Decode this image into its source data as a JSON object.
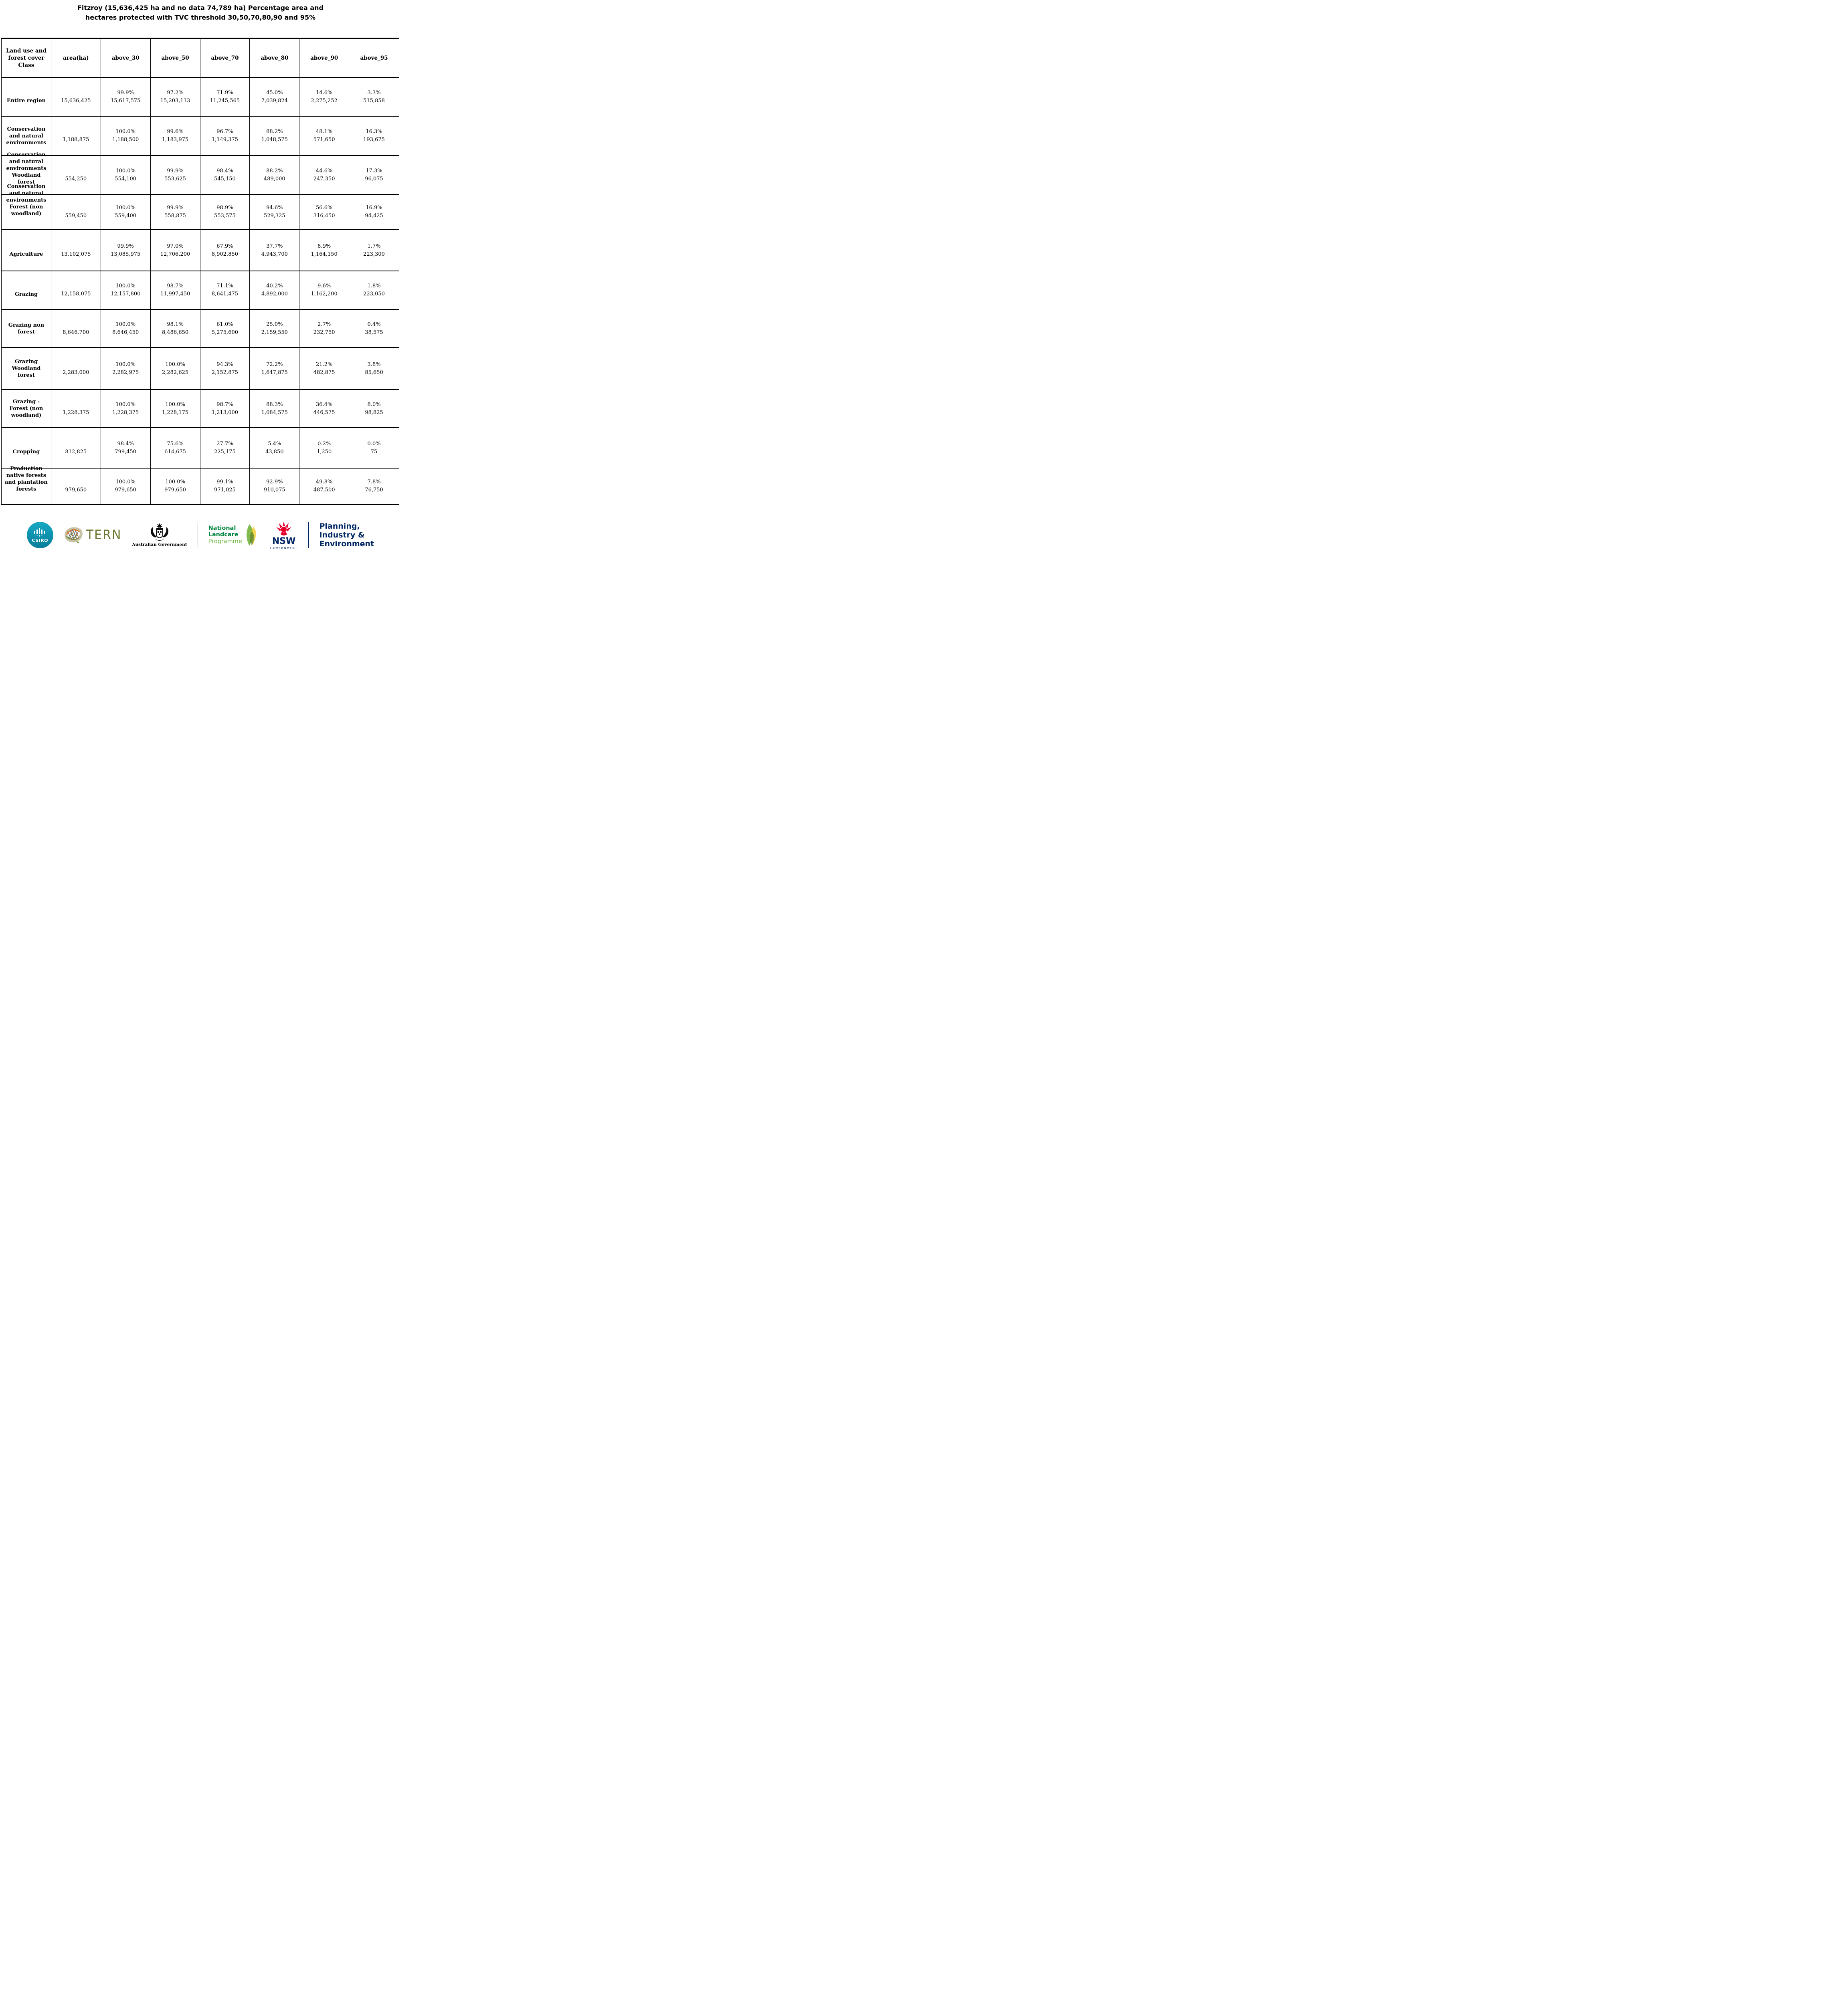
{
  "title": {
    "line1": "Fitzroy (15,636,425 ha and no data 74,789 ha) Percentage area and",
    "line2": "hectares protected with TVC threshold 30,50,70,80,90 and 95%"
  },
  "table": {
    "columns": [
      "Land use and forest cover Class",
      "area(ha)",
      "above_30",
      "above_50",
      "above_70",
      "above_80",
      "above_90",
      "above_95"
    ],
    "rows": [
      {
        "label": "Entire region",
        "area": "15,636,425",
        "above_30": {
          "pct": "99.9%",
          "ha": "15,617,575"
        },
        "above_50": {
          "pct": "97.2%",
          "ha": "15,203,113"
        },
        "above_70": {
          "pct": "71.9%",
          "ha": "11,245,565"
        },
        "above_80": {
          "pct": "45.0%",
          "ha": "7,039,824"
        },
        "above_90": {
          "pct": "14.6%",
          "ha": "2,275,252"
        },
        "above_95": {
          "pct": "3.3%",
          "ha": "515,858"
        }
      },
      {
        "label": "Conservation and natural environments",
        "area": "1,188,875",
        "above_30": {
          "pct": "100.0%",
          "ha": "1,188,500"
        },
        "above_50": {
          "pct": "99.6%",
          "ha": "1,183,975"
        },
        "above_70": {
          "pct": "96.7%",
          "ha": "1,149,375"
        },
        "above_80": {
          "pct": "88.2%",
          "ha": "1,048,575"
        },
        "above_90": {
          "pct": "48.1%",
          "ha": "571,650"
        },
        "above_95": {
          "pct": "16.3%",
          "ha": "193,675"
        }
      },
      {
        "label": "Conservation and natural environments Woodland forest",
        "area": "554,250",
        "above_30": {
          "pct": "100.0%",
          "ha": "554,100"
        },
        "above_50": {
          "pct": "99.9%",
          "ha": "553,625"
        },
        "above_70": {
          "pct": "98.4%",
          "ha": "545,150"
        },
        "above_80": {
          "pct": "88.2%",
          "ha": "489,000"
        },
        "above_90": {
          "pct": "44.6%",
          "ha": "247,350"
        },
        "above_95": {
          "pct": "17.3%",
          "ha": "96,075"
        }
      },
      {
        "label": "Conservation and natural environments Forest (non woodland)",
        "area": "559,450",
        "above_30": {
          "pct": "100.0%",
          "ha": "559,400"
        },
        "above_50": {
          "pct": "99.9%",
          "ha": "558,875"
        },
        "above_70": {
          "pct": "98.9%",
          "ha": "553,575"
        },
        "above_80": {
          "pct": "94.6%",
          "ha": "529,325"
        },
        "above_90": {
          "pct": "56.6%",
          "ha": "316,450"
        },
        "above_95": {
          "pct": "16.9%",
          "ha": "94,425"
        }
      },
      {
        "label": "Agriculture",
        "area": "13,102,075",
        "above_30": {
          "pct": "99.9%",
          "ha": "13,085,975"
        },
        "above_50": {
          "pct": "97.0%",
          "ha": "12,706,200"
        },
        "above_70": {
          "pct": "67.9%",
          "ha": "8,902,850"
        },
        "above_80": {
          "pct": "37.7%",
          "ha": "4,943,700"
        },
        "above_90": {
          "pct": "8.9%",
          "ha": "1,164,150"
        },
        "above_95": {
          "pct": "1.7%",
          "ha": "223,300"
        }
      },
      {
        "label": "Grazing",
        "area": "12,158,075",
        "above_30": {
          "pct": "100.0%",
          "ha": "12,157,800"
        },
        "above_50": {
          "pct": "98.7%",
          "ha": "11,997,450"
        },
        "above_70": {
          "pct": "71.1%",
          "ha": "8,641,475"
        },
        "above_80": {
          "pct": "40.2%",
          "ha": "4,892,000"
        },
        "above_90": {
          "pct": "9.6%",
          "ha": "1,162,200"
        },
        "above_95": {
          "pct": "1.8%",
          "ha": "223,050"
        }
      },
      {
        "label": "Grazing non forest",
        "area": "8,646,700",
        "above_30": {
          "pct": "100.0%",
          "ha": "8,646,450"
        },
        "above_50": {
          "pct": "98.1%",
          "ha": "8,486,650"
        },
        "above_70": {
          "pct": "61.0%",
          "ha": "5,275,600"
        },
        "above_80": {
          "pct": "25.0%",
          "ha": "2,159,550"
        },
        "above_90": {
          "pct": "2.7%",
          "ha": "232,750"
        },
        "above_95": {
          "pct": "0.4%",
          "ha": "38,575"
        }
      },
      {
        "label": "Grazing Woodland forest",
        "area": "2,283,000",
        "above_30": {
          "pct": "100.0%",
          "ha": "2,282,975"
        },
        "above_50": {
          "pct": "100.0%",
          "ha": "2,282,625"
        },
        "above_70": {
          "pct": "94.3%",
          "ha": "2,152,875"
        },
        "above_80": {
          "pct": "72.2%",
          "ha": "1,647,875"
        },
        "above_90": {
          "pct": "21.2%",
          "ha": "482,875"
        },
        "above_95": {
          "pct": "3.8%",
          "ha": "85,650"
        }
      },
      {
        "label": "Grazing - Forest (non woodland)",
        "area": "1,228,375",
        "above_30": {
          "pct": "100.0%",
          "ha": "1,228,375"
        },
        "above_50": {
          "pct": "100.0%",
          "ha": "1,228,175"
        },
        "above_70": {
          "pct": "98.7%",
          "ha": "1,213,000"
        },
        "above_80": {
          "pct": "88.3%",
          "ha": "1,084,575"
        },
        "above_90": {
          "pct": "36.4%",
          "ha": "446,575"
        },
        "above_95": {
          "pct": "8.0%",
          "ha": "98,825"
        }
      },
      {
        "label": "Cropping",
        "area": "812,825",
        "above_30": {
          "pct": "98.4%",
          "ha": "799,450"
        },
        "above_50": {
          "pct": "75.6%",
          "ha": "614,675"
        },
        "above_70": {
          "pct": "27.7%",
          "ha": "225,175"
        },
        "above_80": {
          "pct": "5.4%",
          "ha": "43,850"
        },
        "above_90": {
          "pct": "0.2%",
          "ha": "1,250"
        },
        "above_95": {
          "pct": "0.0%",
          "ha": "75"
        }
      },
      {
        "label": "Production native forests and plantation forests",
        "area": "979,650",
        "above_30": {
          "pct": "100.0%",
          "ha": "979,650"
        },
        "above_50": {
          "pct": "100.0%",
          "ha": "979,650"
        },
        "above_70": {
          "pct": "99.1%",
          "ha": "971,025"
        },
        "above_80": {
          "pct": "92.9%",
          "ha": "910,075"
        },
        "above_90": {
          "pct": "49.8%",
          "ha": "487,500"
        },
        "above_95": {
          "pct": "7.8%",
          "ha": "76,750"
        }
      }
    ]
  },
  "footer": {
    "csiro_label": "CSIRO",
    "tern_label": "TERN",
    "aus_gov_label": "Australian Government",
    "landcare": {
      "line1": "National",
      "line2": "Landcare",
      "line3": "Programme"
    },
    "nsw": {
      "name": "NSW",
      "sub": "GOVERNMENT"
    },
    "department": {
      "line1": "Planning,",
      "line2": "Industry &",
      "line3": "Environment"
    },
    "colors": {
      "csiro_teal": "#0e94ad",
      "tern_olive": "#6d7532",
      "landcare_green": "#00843d",
      "landcare_light_green": "#6fb643",
      "nsw_red": "#e4002b",
      "nsw_navy": "#002664"
    }
  }
}
